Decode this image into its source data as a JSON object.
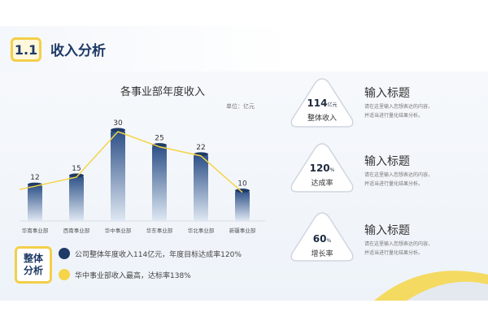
{
  "header": {
    "section_number": "1.1",
    "section_title": "收入分析"
  },
  "chart_data": {
    "type": "bar",
    "title": "各事业部年度收入",
    "unit": "单位：亿元",
    "categories": [
      "华南事业部",
      "西南事业部",
      "华中事业部",
      "华东事业部",
      "华北事业部",
      "新疆事业部"
    ],
    "values": [
      12,
      15,
      30,
      25,
      22,
      10
    ],
    "ylim": [
      0,
      30
    ],
    "overlay_line": true,
    "grid": false,
    "colors": {
      "bar_top": "#2b4f86",
      "bar_bottom": "#dfe8f3",
      "line": "#f5d547"
    }
  },
  "analysis": {
    "badge_line1": "整体",
    "badge_line2": "分析",
    "notes": [
      {
        "text": "公司整体年度收入114亿元，年度目标达成率120%",
        "color": "#1f3a66"
      },
      {
        "text": "华中事业部收入最高，达标率138%",
        "color": "#f5d547"
      }
    ]
  },
  "kpis": [
    {
      "value": "114",
      "unit": "亿元",
      "label": "整体收入",
      "title": "输入标题",
      "desc1": "请在这里输入您想表达的内容，",
      "desc2": "并适当进行量化结果分析。"
    },
    {
      "value": "120",
      "unit": "%",
      "label": "达成率",
      "title": "输入标题",
      "desc1": "请在这里输入您想表达的内容，",
      "desc2": "并适当进行量化结果分析。"
    },
    {
      "value": "60",
      "unit": "%",
      "label": "增长率",
      "title": "输入标题",
      "desc1": "请在这里输入您想表达的内容，",
      "desc2": "并适当进行量化结果分析。"
    }
  ]
}
